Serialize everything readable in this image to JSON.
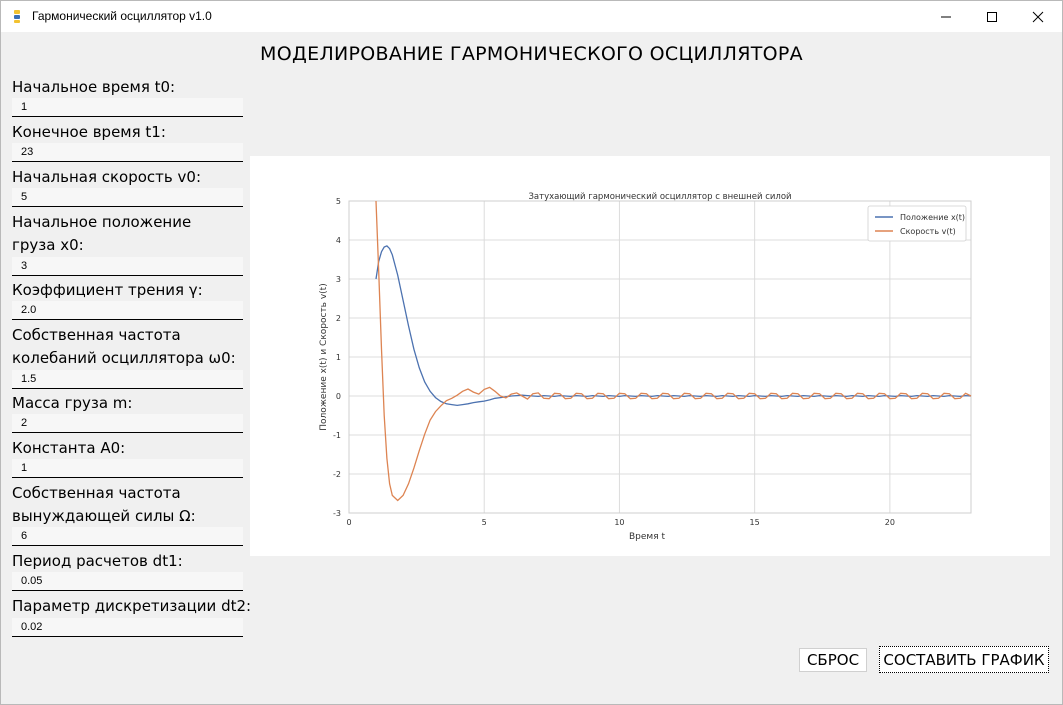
{
  "window": {
    "title": "Гармонический осциллятор v1.0"
  },
  "heading": "МОДЕЛИРОВАНИЕ ГАРМОНИЧЕСКОГО ОСЦИЛЛЯТОРА",
  "form": [
    {
      "label_lines": [
        "Начальное время t0:"
      ],
      "value": "1"
    },
    {
      "label_lines": [
        "Конечное время t1:"
      ],
      "value": "23"
    },
    {
      "label_lines": [
        "Начальная скорость v0:"
      ],
      "value": "5"
    },
    {
      "label_lines": [
        "Начальное положение",
        "груза x0:"
      ],
      "value": "3"
    },
    {
      "label_lines": [
        "Коэффициент трения γ:"
      ],
      "value": "2.0"
    },
    {
      "label_lines": [
        "Собственная частота",
        "колебаний осциллятора ω0:"
      ],
      "value": "1.5"
    },
    {
      "label_lines": [
        "Масса груза m:"
      ],
      "value": "2"
    },
    {
      "label_lines": [
        "Константа A0:"
      ],
      "value": "1"
    },
    {
      "label_lines": [
        "Собственная частота",
        "вынуждающей силы Ω:"
      ],
      "value": "6"
    },
    {
      "label_lines": [
        "Период расчетов dt1:"
      ],
      "value": "0.05"
    },
    {
      "label_lines": [
        "Параметр дискретизации dt2:"
      ],
      "value": "0.02"
    }
  ],
  "buttons": {
    "reset": "СБРОС",
    "plot": "СОСТАВИТЬ ГРАФИК"
  },
  "chart_data": {
    "type": "line",
    "title": "Затухающий гармонический осциллятор с внешней силой",
    "xlabel": "Время t",
    "ylabel": "Положение x(t) и Скорость v(t)",
    "xlim": [
      0,
      23
    ],
    "ylim": [
      -3,
      5
    ],
    "xticks": [
      0,
      5,
      10,
      15,
      20
    ],
    "yticks": [
      5,
      4,
      3,
      2,
      1,
      0,
      -1,
      -2,
      -3
    ],
    "grid": true,
    "legend_position": "top-right",
    "x": [
      1.0,
      1.1,
      1.2,
      1.3,
      1.4,
      1.5,
      1.6,
      1.8,
      2.0,
      2.2,
      2.4,
      2.6,
      2.8,
      3.0,
      3.2,
      3.4,
      3.6,
      3.8,
      4.0,
      4.2,
      4.4,
      4.6,
      4.8,
      5.0,
      5.2,
      5.4,
      5.6,
      5.8,
      6.0,
      6.2,
      6.4,
      6.6,
      6.8,
      7.0,
      7.2,
      7.4,
      7.6,
      7.8,
      8.0,
      8.2,
      8.4,
      8.6,
      8.8,
      9.0,
      9.2,
      9.4,
      9.6,
      9.8,
      10.0,
      10.2,
      10.4,
      10.6,
      10.8,
      11.0,
      11.2,
      11.4,
      11.6,
      11.8,
      12.0,
      12.2,
      12.4,
      12.6,
      12.8,
      13.0,
      13.2,
      13.4,
      13.6,
      13.8,
      14.0,
      14.2,
      14.4,
      14.6,
      14.8,
      15.0,
      15.2,
      15.4,
      15.6,
      15.8,
      16.0,
      16.2,
      16.4,
      16.6,
      16.8,
      17.0,
      17.2,
      17.4,
      17.6,
      17.8,
      18.0,
      18.2,
      18.4,
      18.6,
      18.8,
      19.0,
      19.2,
      19.4,
      19.6,
      19.8,
      20.0,
      20.2,
      20.4,
      20.6,
      20.8,
      21.0,
      21.2,
      21.4,
      21.6,
      21.8,
      22.0,
      22.2,
      22.4,
      22.6,
      22.8,
      23.0
    ],
    "series": [
      {
        "name": "Положение x(t)",
        "color": "#4c72b0",
        "values": [
          3.0,
          3.45,
          3.7,
          3.82,
          3.85,
          3.78,
          3.62,
          3.1,
          2.45,
          1.8,
          1.2,
          0.72,
          0.36,
          0.12,
          -0.04,
          -0.14,
          -0.2,
          -0.22,
          -0.24,
          -0.22,
          -0.2,
          -0.17,
          -0.15,
          -0.13,
          -0.1,
          -0.06,
          -0.04,
          -0.02,
          0.0,
          0.01,
          0.02,
          0.01,
          0.0,
          -0.01,
          0.01,
          0.0,
          -0.01,
          0.01,
          0.0,
          -0.01,
          0.01,
          0.0,
          -0.01,
          0.01,
          0.0,
          -0.01,
          0.01,
          0.0,
          -0.01,
          0.01,
          0.0,
          -0.01,
          0.01,
          0.0,
          -0.01,
          0.01,
          0.0,
          -0.01,
          0.01,
          0.0,
          -0.01,
          0.01,
          0.0,
          -0.01,
          0.01,
          0.0,
          -0.01,
          0.01,
          0.0,
          -0.01,
          0.01,
          0.0,
          -0.01,
          0.01,
          0.0,
          -0.01,
          0.01,
          0.0,
          -0.01,
          0.01,
          0.0,
          -0.01,
          0.01,
          0.0,
          -0.01,
          0.01,
          0.0,
          -0.01,
          0.01,
          0.0,
          -0.01,
          0.01,
          0.0,
          -0.01,
          0.01,
          0.0,
          -0.01,
          0.01,
          0.0,
          -0.01,
          0.01,
          0.0,
          -0.01,
          0.01,
          0.0,
          -0.01,
          0.01,
          0.0,
          -0.01,
          0.01,
          0.0,
          -0.01,
          0.01,
          0.0
        ]
      },
      {
        "name": "Скорость v(t)",
        "color": "#dd8452",
        "values": [
          5.0,
          3.2,
          1.2,
          -0.5,
          -1.6,
          -2.25,
          -2.55,
          -2.68,
          -2.55,
          -2.25,
          -1.85,
          -1.4,
          -0.98,
          -0.62,
          -0.4,
          -0.25,
          -0.12,
          -0.06,
          0.02,
          0.12,
          0.18,
          0.1,
          0.05,
          0.17,
          0.22,
          0.12,
          0.0,
          -0.05,
          0.05,
          0.08,
          0.0,
          -0.08,
          0.06,
          0.08,
          -0.06,
          -0.07,
          0.07,
          0.06,
          -0.07,
          -0.06,
          0.07,
          0.06,
          -0.07,
          -0.06,
          0.07,
          0.06,
          -0.07,
          -0.06,
          0.07,
          0.06,
          -0.07,
          -0.06,
          0.07,
          0.06,
          -0.07,
          -0.06,
          0.07,
          0.06,
          -0.07,
          -0.06,
          0.07,
          0.06,
          -0.07,
          -0.06,
          0.07,
          0.06,
          -0.07,
          -0.06,
          0.07,
          0.06,
          -0.07,
          -0.06,
          0.07,
          0.06,
          -0.07,
          -0.06,
          0.07,
          0.06,
          -0.07,
          -0.06,
          0.07,
          0.06,
          -0.07,
          -0.06,
          0.07,
          0.06,
          -0.07,
          -0.06,
          0.07,
          0.06,
          -0.07,
          -0.06,
          0.07,
          0.06,
          -0.07,
          -0.06,
          0.07,
          0.06,
          -0.07,
          -0.06,
          0.07,
          0.06,
          -0.07,
          -0.06,
          0.07,
          0.06,
          -0.07,
          -0.06,
          0.07,
          0.06,
          -0.07,
          -0.06,
          0.07,
          0.0
        ]
      }
    ]
  }
}
